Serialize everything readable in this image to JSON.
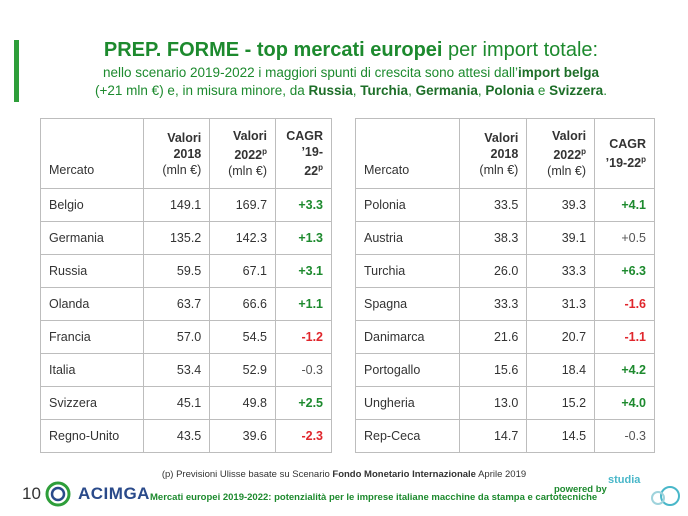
{
  "header": {
    "title_bold": "PREP. FORME - top mercati europei",
    "title_rest": " per import totale:",
    "sub_a": "nello scenario 2019-2022 i maggiori spunti di crescita sono attesi dall’",
    "sub_b": "import belga",
    "sub_c": "(+21 mln €) e, in misura minore, da ",
    "sub_d": "Russia",
    "sub_e": ", ",
    "sub_f": "Turchia",
    "sub_g": ", ",
    "sub_h": "Germania",
    "sub_i": ", ",
    "sub_j": "Polonia",
    "sub_k": " e ",
    "sub_l": "Svizzera",
    "sub_m": "."
  },
  "table_headers": {
    "market": "Mercato",
    "v2018_a": "Valori",
    "v2018_b": "2018",
    "v2018_c": "(mln €)",
    "v2022_a": "Valori",
    "v2022_b": "2022",
    "v2022_sup": "p",
    "v2022_c": "(mln €)",
    "cagr_a": "CAGR",
    "cagr_b": "’19-22",
    "cagr_sup": "p"
  },
  "left_rows": [
    {
      "market": "Belgio",
      "v2018": "149.1",
      "v2022": "169.7",
      "cagr": "+3.3",
      "trend": "pos"
    },
    {
      "market": "Germania",
      "v2018": "135.2",
      "v2022": "142.3",
      "cagr": "+1.3",
      "trend": "pos"
    },
    {
      "market": "Russia",
      "v2018": "59.5",
      "v2022": "67.1",
      "cagr": "+3.1",
      "trend": "pos"
    },
    {
      "market": "Olanda",
      "v2018": "63.7",
      "v2022": "66.6",
      "cagr": "+1.1",
      "trend": "pos"
    },
    {
      "market": "Francia",
      "v2018": "57.0",
      "v2022": "54.5",
      "cagr": "-1.2",
      "trend": "neg"
    },
    {
      "market": "Italia",
      "v2018": "53.4",
      "v2022": "52.9",
      "cagr": "-0.3",
      "trend": "neu"
    },
    {
      "market": "Svizzera",
      "v2018": "45.1",
      "v2022": "49.8",
      "cagr": "+2.5",
      "trend": "pos"
    },
    {
      "market": "Regno-Unito",
      "v2018": "43.5",
      "v2022": "39.6",
      "cagr": "-2.3",
      "trend": "neg"
    }
  ],
  "right_rows": [
    {
      "market": "Polonia",
      "v2018": "33.5",
      "v2022": "39.3",
      "cagr": "+4.1",
      "trend": "pos"
    },
    {
      "market": "Austria",
      "v2018": "38.3",
      "v2022": "39.1",
      "cagr": "+0.5",
      "trend": "neu"
    },
    {
      "market": "Turchia",
      "v2018": "26.0",
      "v2022": "33.3",
      "cagr": "+6.3",
      "trend": "pos"
    },
    {
      "market": "Spagna",
      "v2018": "33.3",
      "v2022": "31.3",
      "cagr": "-1.6",
      "trend": "neg"
    },
    {
      "market": "Danimarca",
      "v2018": "21.6",
      "v2022": "20.7",
      "cagr": "-1.1",
      "trend": "neg"
    },
    {
      "market": "Portogallo",
      "v2018": "15.6",
      "v2022": "18.4",
      "cagr": "+4.2",
      "trend": "pos"
    },
    {
      "market": "Ungheria",
      "v2018": "13.0",
      "v2022": "15.2",
      "cagr": "+4.0",
      "trend": "pos"
    },
    {
      "market": "Rep-Ceca",
      "v2018": "14.7",
      "v2022": "14.5",
      "cagr": "-0.3",
      "trend": "neu"
    }
  ],
  "footnote": {
    "a": "(p) Previsioni Ulisse basate su Scenario ",
    "b": "Fondo Monetario  Internazionale",
    "c": " Aprile 2019"
  },
  "footer": {
    "page_number": "10",
    "logo_text": "ACIMGA",
    "caption": "Mercati europei 2019-2022: potenzialità per le imprese italiane macchine da stampa e cartotecniche",
    "powered_by": "powered by",
    "studia_text": "studia",
    "logo_icon": "acimga-logo",
    "accent_color": "#1d8a2e",
    "negative_color": "#e0262c"
  }
}
